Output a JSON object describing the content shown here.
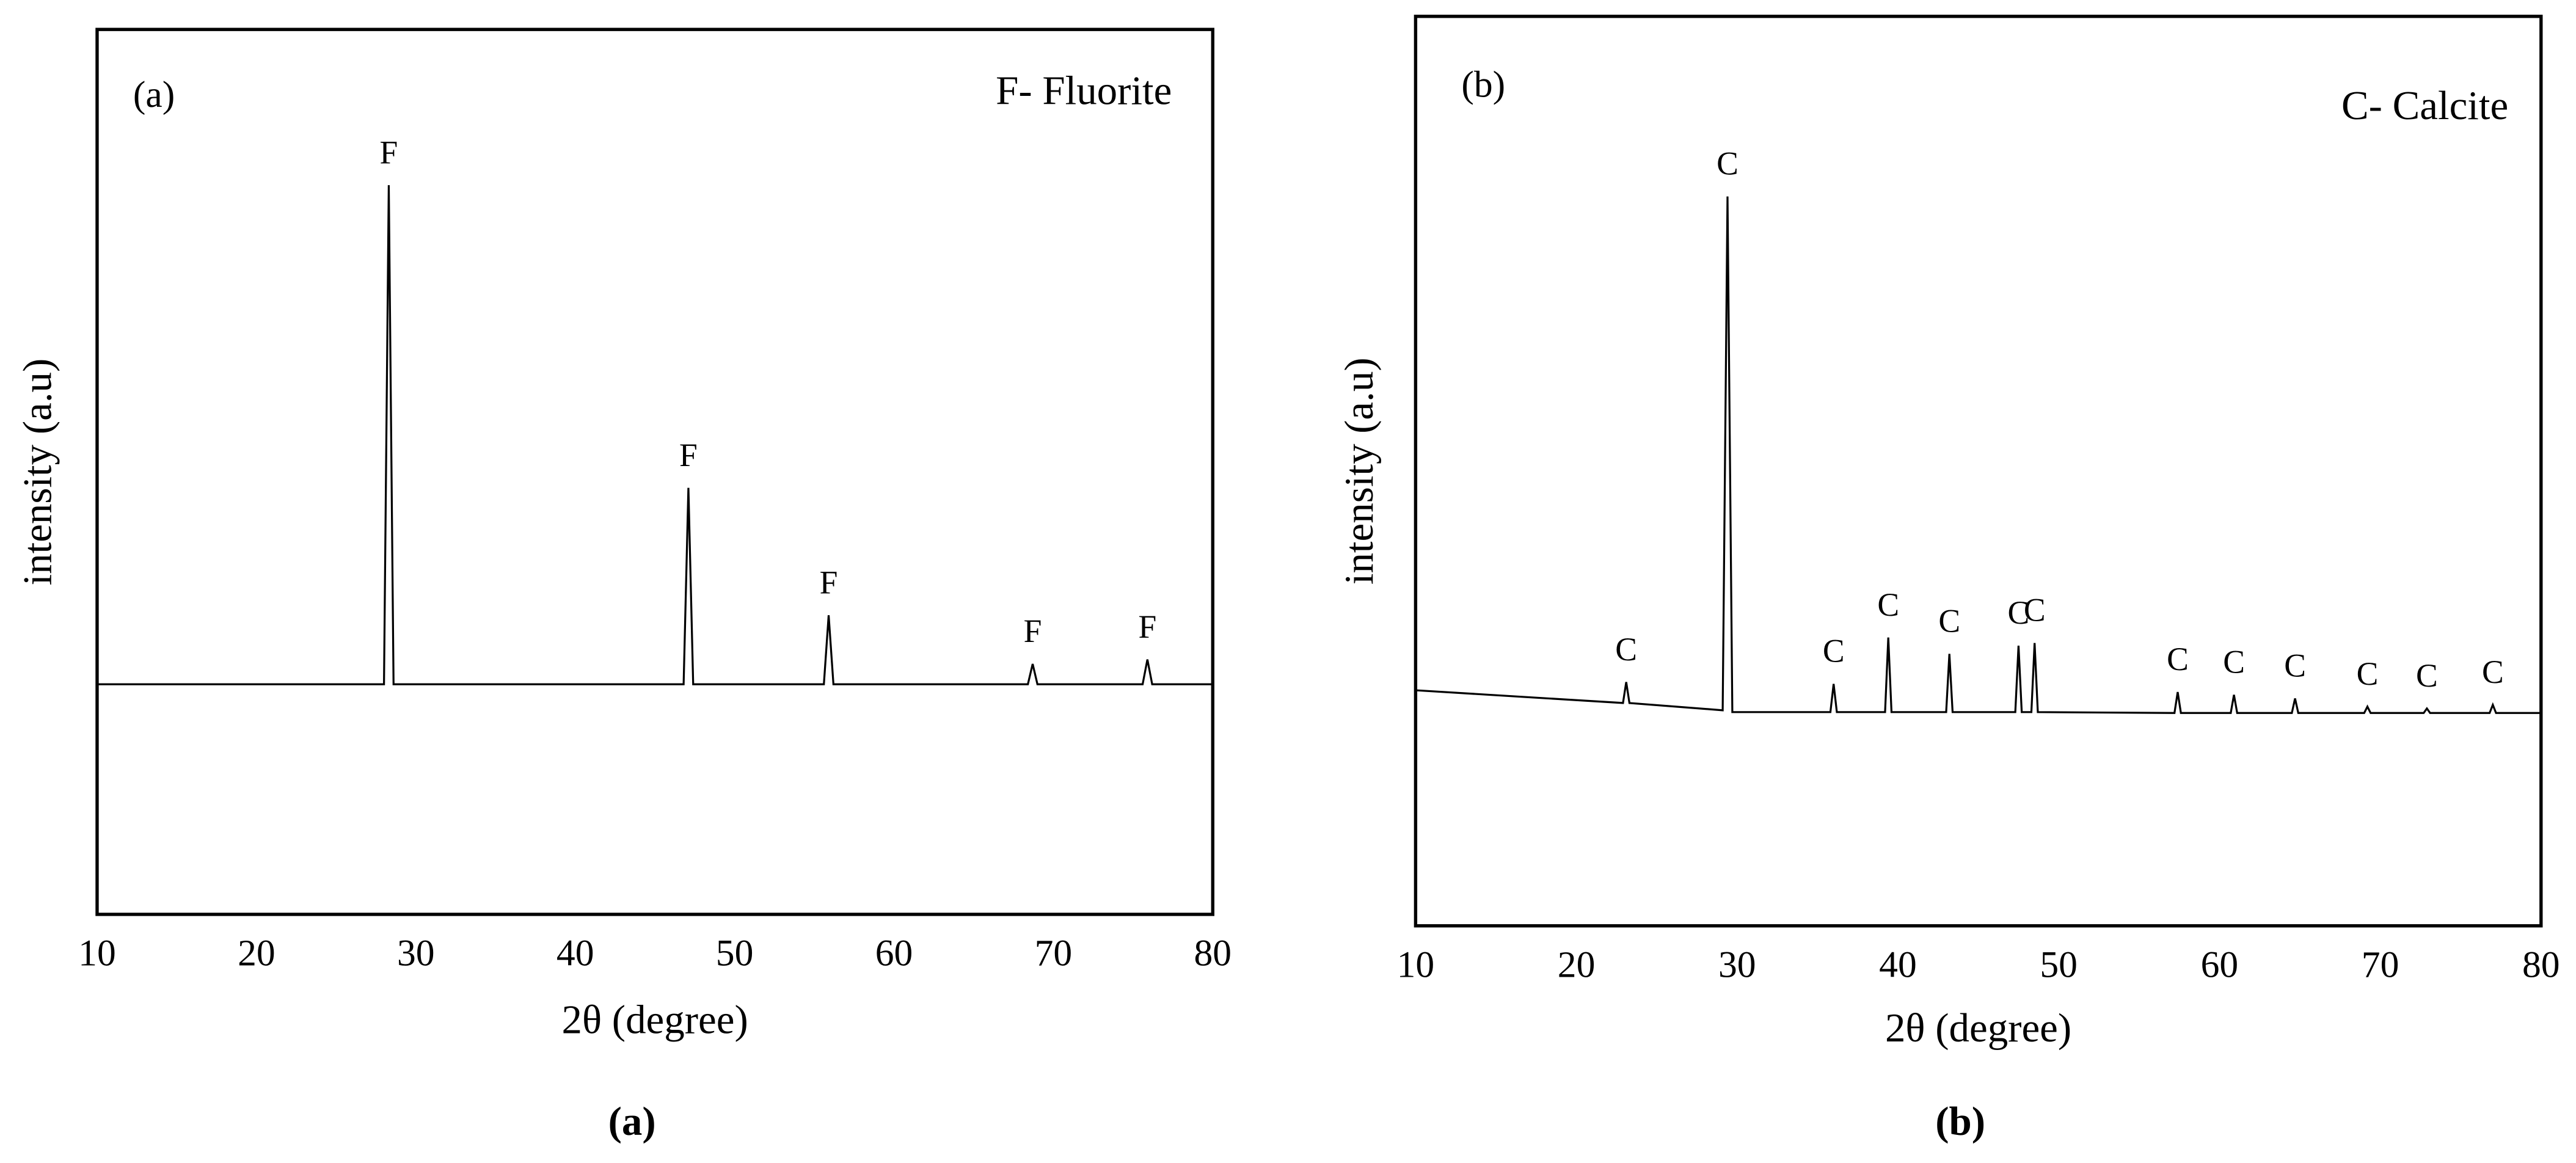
{
  "chart_data": [
    {
      "type": "line",
      "panel_label": "(a)",
      "note": "F- Fluorite",
      "caption": "(a)",
      "xlabel": "2θ (degree)",
      "ylabel": "intensity (a.u)",
      "x": [
        10,
        28.0,
        28.3,
        28.6,
        46.8,
        47.1,
        47.4,
        55.6,
        55.9,
        56.2,
        68.4,
        68.7,
        69.0,
        75.6,
        75.9,
        76.2,
        80
      ],
      "values": [
        26,
        26,
        82.4,
        26,
        26,
        48.2,
        26,
        26,
        33.8,
        26,
        26,
        28.3,
        26,
        26,
        28.8,
        26,
        26
      ],
      "color": "#000000",
      "xlim": [
        10,
        80
      ],
      "xticks": [
        10,
        20,
        30,
        40,
        50,
        60,
        70,
        80
      ],
      "ylim": [
        0,
        100
      ],
      "annotations": [
        {
          "text": "F",
          "x": 28.3
        },
        {
          "text": "F",
          "x": 47.1
        },
        {
          "text": "F",
          "x": 55.9
        },
        {
          "text": "F",
          "x": 68.7
        },
        {
          "text": "F",
          "x": 75.9
        }
      ]
    },
    {
      "type": "line",
      "panel_label": "(b)",
      "note": "C- Calcite",
      "caption": "(b)",
      "xlabel": "2θ (degree)",
      "ylabel": "intensity (a.u)",
      "x": [
        10,
        22.9,
        23.1,
        23.3,
        29.1,
        29.4,
        29.7,
        35.8,
        36.0,
        36.2,
        39.2,
        39.4,
        39.6,
        43.0,
        43.2,
        43.4,
        47.3,
        47.5,
        47.7,
        48.3,
        48.5,
        48.7,
        57.2,
        57.4,
        57.6,
        60.7,
        60.9,
        61.1,
        64.5,
        64.7,
        64.9,
        69.0,
        69.2,
        69.4,
        72.7,
        72.9,
        73.1,
        76.8,
        77.0,
        77.2,
        80
      ],
      "values": [
        25.9,
        24.5,
        26.8,
        24.5,
        23.7,
        80.2,
        23.5,
        23.5,
        26.6,
        23.5,
        23.5,
        31.7,
        23.5,
        23.5,
        29.9,
        23.5,
        23.5,
        30.8,
        23.5,
        23.5,
        31.1,
        23.5,
        23.4,
        25.7,
        23.4,
        23.4,
        25.4,
        23.4,
        23.4,
        25.0,
        23.4,
        23.4,
        24.1,
        23.4,
        23.4,
        23.9,
        23.4,
        23.4,
        24.3,
        23.4,
        23.4
      ],
      "color": "#000000",
      "xlim": [
        10,
        80
      ],
      "xticks": [
        10,
        20,
        30,
        40,
        50,
        60,
        70,
        80
      ],
      "ylim": [
        0,
        100
      ],
      "annotations": [
        {
          "text": "C",
          "x": 23.1
        },
        {
          "text": "C",
          "x": 29.4
        },
        {
          "text": "C",
          "x": 36.0
        },
        {
          "text": "C",
          "x": 39.4
        },
        {
          "text": "C",
          "x": 43.2
        },
        {
          "text": "C",
          "x": 47.5
        },
        {
          "text": "C",
          "x": 48.5
        },
        {
          "text": "C",
          "x": 57.4
        },
        {
          "text": "C",
          "x": 60.9
        },
        {
          "text": "C",
          "x": 64.7
        },
        {
          "text": "C",
          "x": 69.2
        },
        {
          "text": "C",
          "x": 72.9
        },
        {
          "text": "C",
          "x": 77.0
        }
      ]
    }
  ]
}
